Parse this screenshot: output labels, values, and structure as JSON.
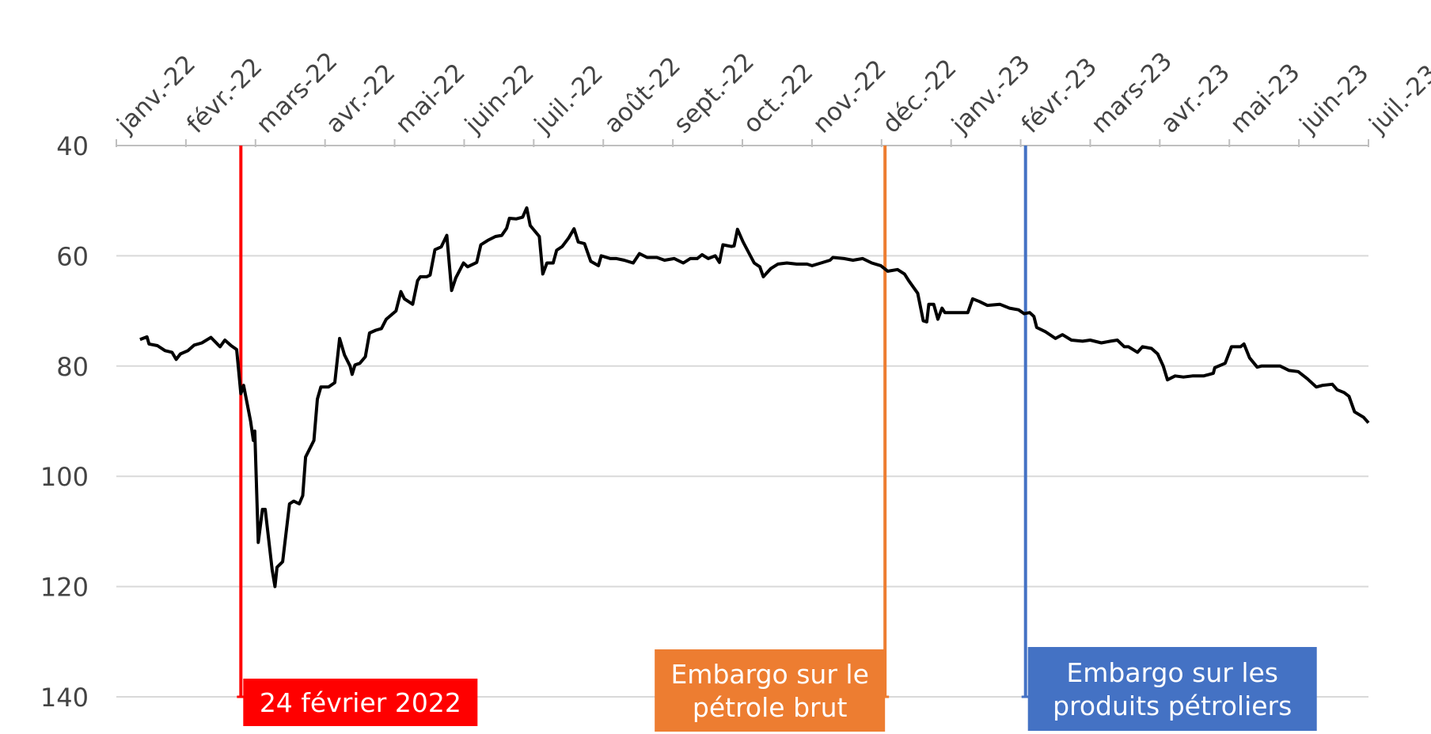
{
  "chart_data": {
    "type": "line",
    "x": [
      0.34,
      0.44,
      0.47,
      0.59,
      0.7,
      0.8,
      0.86,
      0.92,
      1.03,
      1.12,
      1.23,
      1.36,
      1.49,
      1.56,
      1.65,
      1.73,
      1.79,
      1.83,
      1.93,
      1.97,
      1.99,
      2.04,
      2.1,
      2.14,
      2.24,
      2.28,
      2.31,
      2.39,
      2.49,
      2.55,
      2.63,
      2.68,
      2.72,
      2.84,
      2.89,
      2.94,
      3.05,
      3.14,
      3.21,
      3.28,
      3.36,
      3.39,
      3.43,
      3.5,
      3.58,
      3.64,
      3.73,
      3.81,
      3.88,
      4.02,
      4.09,
      4.14,
      4.26,
      4.33,
      4.37,
      4.46,
      4.51,
      4.58,
      4.67,
      4.75,
      4.82,
      4.88,
      4.99,
      5.05,
      5.18,
      5.24,
      5.34,
      5.45,
      5.54,
      5.61,
      5.65,
      5.75,
      5.84,
      5.9,
      5.95,
      6.08,
      6.13,
      6.19,
      6.28,
      6.33,
      6.41,
      6.5,
      6.58,
      6.64,
      6.73,
      6.82,
      6.93,
      6.97,
      7.1,
      7.19,
      7.3,
      7.43,
      7.52,
      7.63,
      7.77,
      7.88,
      8.02,
      8.15,
      8.25,
      8.35,
      8.42,
      8.51,
      8.61,
      8.67,
      8.72,
      8.84,
      8.88,
      8.93,
      9.01,
      9.17,
      9.25,
      9.3,
      9.41,
      9.51,
      9.64,
      9.78,
      9.93,
      10.0,
      10.13,
      10.26,
      10.3,
      10.46,
      10.59,
      10.73,
      10.86,
      10.99,
      11.09,
      11.23,
      11.33,
      11.39,
      11.52,
      11.6,
      11.65,
      11.68,
      11.75,
      11.81,
      11.87,
      11.91,
      12.15,
      12.24,
      12.31,
      12.41,
      12.52,
      12.7,
      12.84,
      12.97,
      13.05,
      13.13,
      13.19,
      13.23,
      13.36,
      13.5,
      13.6,
      13.73,
      13.89,
      14.0,
      14.16,
      14.29,
      14.39,
      14.49,
      14.55,
      14.68,
      14.75,
      14.88,
      14.97,
      15.05,
      15.11,
      15.22,
      15.34,
      15.47,
      15.63,
      15.77,
      15.79,
      15.94,
      16.03,
      16.16,
      16.21,
      16.29,
      16.4,
      16.46,
      16.6,
      16.73,
      16.86,
      16.99,
      17.12,
      17.25,
      17.34,
      17.48,
      17.55,
      17.65,
      17.72,
      17.8,
      17.93,
      18.0
    ],
    "series": [
      {
        "color": "#000000",
        "values": [
          75.2,
          74.7,
          76,
          76.3,
          77.2,
          77.5,
          78.8,
          77.8,
          77.2,
          76.2,
          75.8,
          74.8,
          76.5,
          75.3,
          76.3,
          77,
          85,
          83.5,
          90,
          93.5,
          91.8,
          112,
          106,
          106,
          117,
          120,
          116.5,
          115.5,
          105,
          104.5,
          105,
          103.5,
          96.5,
          93.5,
          86,
          83.8,
          83.8,
          83,
          75,
          78,
          80,
          81.5,
          79.8,
          79.5,
          78.3,
          74,
          73.5,
          73.2,
          71.5,
          70,
          66.5,
          67.8,
          68.8,
          64.5,
          63.8,
          63.8,
          63.5,
          58.9,
          58.4,
          56.3,
          66.3,
          64,
          61.3,
          62,
          61.2,
          58,
          57.2,
          56.5,
          56.3,
          55,
          53.2,
          53.3,
          53,
          51.3,
          54.5,
          56.5,
          63.3,
          61.3,
          61.3,
          59,
          58.3,
          56.8,
          55.1,
          57.5,
          57.8,
          61,
          61.8,
          60,
          60.5,
          60.5,
          60.8,
          61.3,
          59.6,
          60.3,
          60.3,
          60.8,
          60.5,
          61.3,
          60.5,
          60.5,
          59.8,
          60.5,
          60,
          61.2,
          58,
          58.3,
          58.2,
          55.2,
          57.5,
          61.3,
          62,
          63.8,
          62.3,
          61.5,
          61.3,
          61.5,
          61.5,
          61.8,
          61.3,
          60.8,
          60.3,
          60.5,
          60.8,
          60.5,
          61.3,
          61.8,
          62.8,
          62.5,
          63.3,
          64.5,
          66.8,
          71.8,
          72,
          68.8,
          68.8,
          71.5,
          69.5,
          70.3,
          70.3,
          70.3,
          67.8,
          68.3,
          69,
          68.8,
          69.5,
          69.8,
          70.5,
          70.3,
          71,
          73,
          73.8,
          75,
          74.3,
          75.3,
          75.5,
          75.3,
          75.8,
          75.5,
          75.3,
          76.5,
          76.5,
          77.5,
          76.5,
          76.8,
          77.8,
          80,
          82.5,
          81.8,
          82,
          81.8,
          81.8,
          81.3,
          80.3,
          79.5,
          76.5,
          76.5,
          76,
          78.5,
          80.2,
          80,
          80,
          80,
          80.8,
          81,
          82.3,
          83.8,
          83.5,
          83.3,
          84.3,
          84.8,
          85.5,
          88.3,
          89.3,
          90.3
        ]
      }
    ],
    "xlim": [
      0,
      18
    ],
    "xticks": [
      {
        "value": 0,
        "label": "janv.-22"
      },
      {
        "value": 1,
        "label": "févr.-22"
      },
      {
        "value": 2,
        "label": "mars-22"
      },
      {
        "value": 3,
        "label": "avr.-22"
      },
      {
        "value": 4,
        "label": "mai-22"
      },
      {
        "value": 5,
        "label": "juin-22"
      },
      {
        "value": 6,
        "label": "juil.-22"
      },
      {
        "value": 7,
        "label": "août-22"
      },
      {
        "value": 8,
        "label": "sept.-22"
      },
      {
        "value": 9,
        "label": "oct.-22"
      },
      {
        "value": 10,
        "label": "nov.-22"
      },
      {
        "value": 11,
        "label": "déc.-22"
      },
      {
        "value": 12,
        "label": "janv.-23"
      },
      {
        "value": 13,
        "label": "févr.-23"
      },
      {
        "value": 14,
        "label": "mars-23"
      },
      {
        "value": 15,
        "label": "avr.-23"
      },
      {
        "value": 16,
        "label": "mai-23"
      },
      {
        "value": 17,
        "label": "juin-23"
      },
      {
        "value": 18,
        "label": "juil.-23"
      }
    ],
    "ylim": [
      40,
      140
    ],
    "yticks": [
      40,
      60,
      80,
      100,
      120,
      140
    ],
    "y_inverted": true,
    "grid": true,
    "annotations": [
      {
        "x": 1.79,
        "color": "#ff0000",
        "lines": [
          "24 février 2022"
        ]
      },
      {
        "x": 11.05,
        "color": "#ed7d31",
        "lines": [
          "Embargo sur le",
          "pétrole brut"
        ]
      },
      {
        "x": 13.07,
        "color": "#4472c4",
        "lines": [
          "Embargo sur les",
          "produits pétroliers"
        ]
      }
    ]
  }
}
